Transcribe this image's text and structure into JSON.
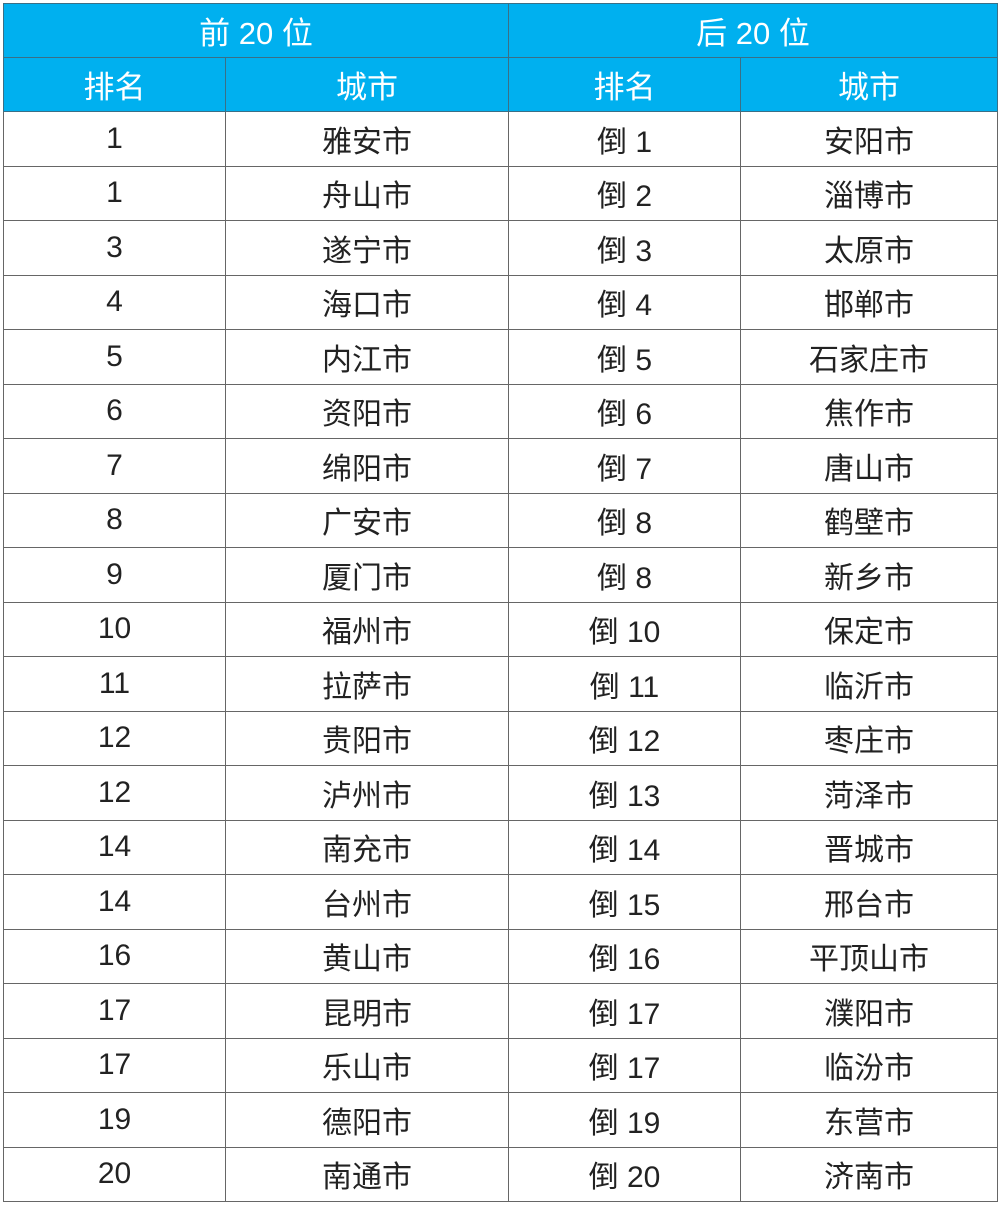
{
  "header": {
    "top": "前 20 位",
    "bottom": "后 20 位",
    "rank": "排名",
    "city": "城市"
  },
  "header_color": "#00b0ef",
  "rows": [
    {
      "top_rank": "1",
      "top_city": "雅安市",
      "bottom_rank": "倒 1",
      "bottom_city": "安阳市"
    },
    {
      "top_rank": "1",
      "top_city": "舟山市",
      "bottom_rank": "倒 2",
      "bottom_city": "淄博市"
    },
    {
      "top_rank": "3",
      "top_city": "遂宁市",
      "bottom_rank": "倒 3",
      "bottom_city": "太原市"
    },
    {
      "top_rank": "4",
      "top_city": "海口市",
      "bottom_rank": "倒 4",
      "bottom_city": "邯郸市"
    },
    {
      "top_rank": "5",
      "top_city": "内江市",
      "bottom_rank": "倒 5",
      "bottom_city": "石家庄市"
    },
    {
      "top_rank": "6",
      "top_city": "资阳市",
      "bottom_rank": "倒 6",
      "bottom_city": "焦作市"
    },
    {
      "top_rank": "7",
      "top_city": "绵阳市",
      "bottom_rank": "倒 7",
      "bottom_city": "唐山市"
    },
    {
      "top_rank": "8",
      "top_city": "广安市",
      "bottom_rank": "倒 8",
      "bottom_city": "鹤壁市"
    },
    {
      "top_rank": "9",
      "top_city": "厦门市",
      "bottom_rank": "倒 8",
      "bottom_city": "新乡市"
    },
    {
      "top_rank": "10",
      "top_city": "福州市",
      "bottom_rank": "倒 10",
      "bottom_city": "保定市"
    },
    {
      "top_rank": "11",
      "top_city": "拉萨市",
      "bottom_rank": "倒 11",
      "bottom_city": "临沂市"
    },
    {
      "top_rank": "12",
      "top_city": "贵阳市",
      "bottom_rank": "倒 12",
      "bottom_city": "枣庄市"
    },
    {
      "top_rank": "12",
      "top_city": "泸州市",
      "bottom_rank": "倒 13",
      "bottom_city": "菏泽市"
    },
    {
      "top_rank": "14",
      "top_city": "南充市",
      "bottom_rank": "倒 14",
      "bottom_city": "晋城市"
    },
    {
      "top_rank": "14",
      "top_city": "台州市",
      "bottom_rank": "倒 15",
      "bottom_city": "邢台市"
    },
    {
      "top_rank": "16",
      "top_city": "黄山市",
      "bottom_rank": "倒 16",
      "bottom_city": "平顶山市"
    },
    {
      "top_rank": "17",
      "top_city": "昆明市",
      "bottom_rank": "倒 17",
      "bottom_city": "濮阳市"
    },
    {
      "top_rank": "17",
      "top_city": "乐山市",
      "bottom_rank": "倒 17",
      "bottom_city": "临汾市"
    },
    {
      "top_rank": "19",
      "top_city": "德阳市",
      "bottom_rank": "倒 19",
      "bottom_city": "东营市"
    },
    {
      "top_rank": "20",
      "top_city": "南通市",
      "bottom_rank": "倒 20",
      "bottom_city": "济南市"
    }
  ]
}
